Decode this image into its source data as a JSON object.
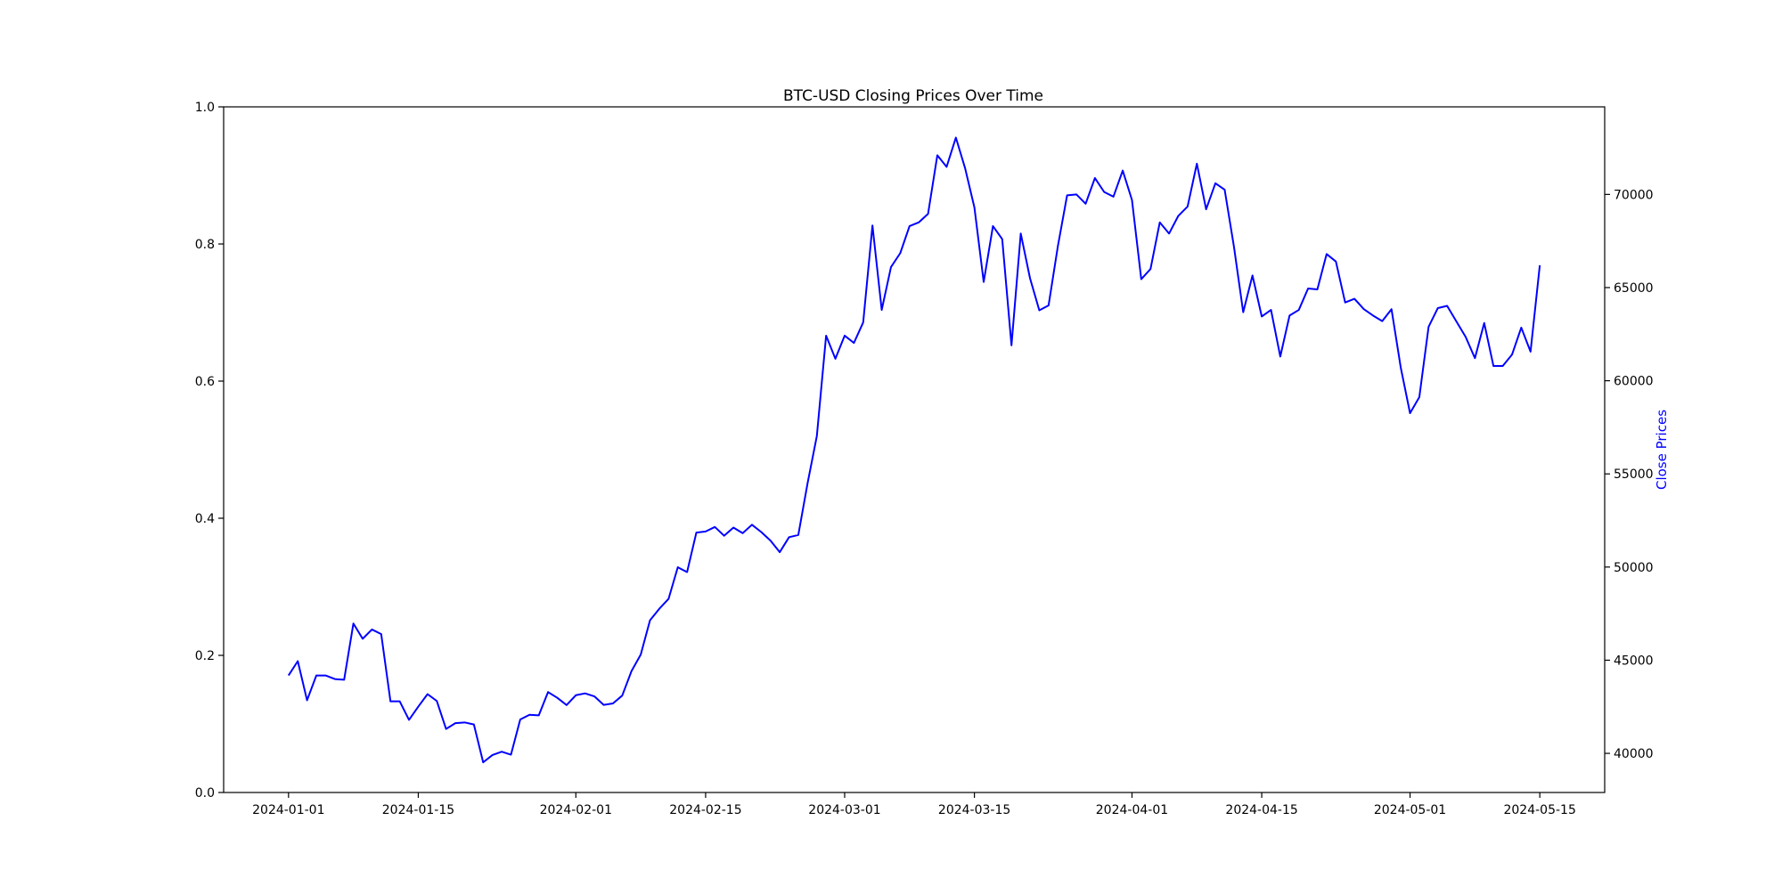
{
  "chart_data": {
    "type": "line",
    "title": "BTC-USD Closing Prices Over Time",
    "xlabel": "",
    "ylabel_left": "",
    "ylabel_right": "Close Prices",
    "x_tick_labels": [
      "2024-01-01",
      "2024-01-15",
      "2024-02-01",
      "2024-02-15",
      "2024-03-01",
      "2024-03-15",
      "2024-04-01",
      "2024-04-15",
      "2024-05-01",
      "2024-05-15"
    ],
    "x_range": [
      "2023-12-25",
      "2024-05-22"
    ],
    "y_left_ticks": [
      "0.0",
      "0.2",
      "0.4",
      "0.6",
      "0.8",
      "1.0"
    ],
    "y_left_range": [
      0,
      1
    ],
    "y_right_ticks": [
      40000,
      45000,
      50000,
      55000,
      60000,
      65000,
      70000
    ],
    "y_right_range": [
      37900,
      74700
    ],
    "grid": false,
    "legend": "none",
    "series": [
      {
        "color": "#0000ff",
        "axis": "right",
        "x": [
          "2024-01-01",
          "2024-01-02",
          "2024-01-03",
          "2024-01-04",
          "2024-01-05",
          "2024-01-06",
          "2024-01-07",
          "2024-01-08",
          "2024-01-09",
          "2024-01-10",
          "2024-01-11",
          "2024-01-12",
          "2024-01-13",
          "2024-01-14",
          "2024-01-15",
          "2024-01-16",
          "2024-01-17",
          "2024-01-18",
          "2024-01-19",
          "2024-01-20",
          "2024-01-21",
          "2024-01-22",
          "2024-01-23",
          "2024-01-24",
          "2024-01-25",
          "2024-01-26",
          "2024-01-27",
          "2024-01-28",
          "2024-01-29",
          "2024-01-30",
          "2024-01-31",
          "2024-02-01",
          "2024-02-02",
          "2024-02-03",
          "2024-02-04",
          "2024-02-05",
          "2024-02-06",
          "2024-02-07",
          "2024-02-08",
          "2024-02-09",
          "2024-02-10",
          "2024-02-11",
          "2024-02-12",
          "2024-02-13",
          "2024-02-14",
          "2024-02-15",
          "2024-02-16",
          "2024-02-17",
          "2024-02-18",
          "2024-02-19",
          "2024-02-20",
          "2024-02-21",
          "2024-02-22",
          "2024-02-23",
          "2024-02-24",
          "2024-02-25",
          "2024-02-26",
          "2024-02-27",
          "2024-02-28",
          "2024-02-29",
          "2024-03-01",
          "2024-03-02",
          "2024-03-03",
          "2024-03-04",
          "2024-03-05",
          "2024-03-06",
          "2024-03-07",
          "2024-03-08",
          "2024-03-09",
          "2024-03-10",
          "2024-03-11",
          "2024-03-12",
          "2024-03-13",
          "2024-03-14",
          "2024-03-15",
          "2024-03-16",
          "2024-03-17",
          "2024-03-18",
          "2024-03-19",
          "2024-03-20",
          "2024-03-21",
          "2024-03-22",
          "2024-03-23",
          "2024-03-24",
          "2024-03-25",
          "2024-03-26",
          "2024-03-27",
          "2024-03-28",
          "2024-03-29",
          "2024-03-30",
          "2024-03-31",
          "2024-04-01",
          "2024-04-02",
          "2024-04-03",
          "2024-04-04",
          "2024-04-05",
          "2024-04-06",
          "2024-04-07",
          "2024-04-08",
          "2024-04-09",
          "2024-04-10",
          "2024-04-11",
          "2024-04-12",
          "2024-04-13",
          "2024-04-14",
          "2024-04-15",
          "2024-04-16",
          "2024-04-17",
          "2024-04-18",
          "2024-04-19",
          "2024-04-20",
          "2024-04-21",
          "2024-04-22",
          "2024-04-23",
          "2024-04-24",
          "2024-04-25",
          "2024-04-26",
          "2024-04-27",
          "2024-04-28",
          "2024-04-29",
          "2024-04-30",
          "2024-05-01",
          "2024-05-02",
          "2024-05-03",
          "2024-05-04",
          "2024-05-05",
          "2024-05-06",
          "2024-05-07",
          "2024-05-08",
          "2024-05-09",
          "2024-05-10",
          "2024-05-11",
          "2024-05-12",
          "2024-05-13",
          "2024-05-14",
          "2024-05-15"
        ],
        "y": [
          44180,
          44950,
          42850,
          44180,
          44180,
          43990,
          43950,
          46970,
          46150,
          46650,
          46400,
          42790,
          42790,
          41800,
          42510,
          43180,
          42810,
          41310,
          41620,
          41660,
          41550,
          39520,
          39910,
          40090,
          39930,
          41820,
          42070,
          42040,
          43290,
          42980,
          42590,
          43120,
          43220,
          43060,
          42600,
          42680,
          43100,
          44410,
          45300,
          47140,
          47760,
          48290,
          49990,
          49730,
          51850,
          51910,
          52150,
          51680,
          52120,
          51820,
          52270,
          51880,
          51420,
          50800,
          51600,
          51720,
          54500,
          57030,
          62420,
          61180,
          62420,
          62030,
          63130,
          68330,
          63800,
          66100,
          66850,
          68300,
          68500,
          68960,
          72100,
          71480,
          73050,
          71400,
          69300,
          65300,
          68300,
          67600,
          61900,
          67900,
          65500,
          63780,
          64040,
          67210,
          69950,
          70000,
          69500,
          70880,
          70130,
          69880,
          71280,
          69700,
          65450,
          66000,
          68500,
          67900,
          68850,
          69350,
          71650,
          69200,
          70600,
          70250,
          67200,
          63680,
          65650,
          63450,
          63800,
          61300,
          63500,
          63800,
          64950,
          64900,
          66800,
          66400,
          64200,
          64400,
          63850,
          63500,
          63200,
          63840,
          60700,
          58260,
          59120,
          62890,
          63900,
          64020,
          63180,
          62350,
          61210,
          63100,
          60790,
          60790,
          61400,
          62850,
          61560,
          66200
        ]
      }
    ]
  }
}
